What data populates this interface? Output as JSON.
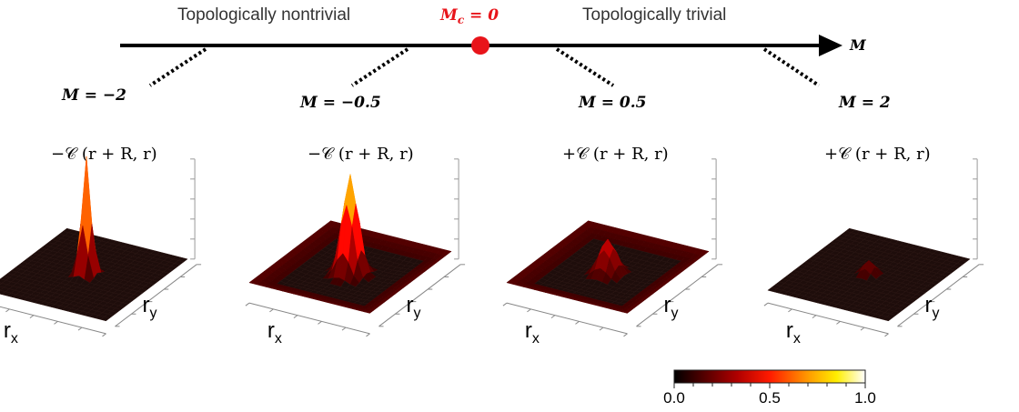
{
  "axis": {
    "variable": "M",
    "region_left": "Topologically nontrivial",
    "region_right": "Topologically trivial",
    "critical": "M_c = 0",
    "critical_color": "#e8141a"
  },
  "panels": [
    {
      "m_label": "M = −2",
      "formula": "−𝒞 (r + R, r)",
      "peak": 1.0,
      "spread": 0.01,
      "edge_curl": 0.0
    },
    {
      "m_label": "M = −0.5",
      "formula": "−𝒞 (r + R, r)",
      "peak": 0.85,
      "spread": 0.025,
      "edge_curl": 0.6
    },
    {
      "m_label": "M = 0.5",
      "formula": "+𝒞 (r + R, r)",
      "peak": 0.3,
      "spread": 0.03,
      "edge_curl": 0.6
    },
    {
      "m_label": "M = 2",
      "formula": "+𝒞 (r + R, r)",
      "peak": 0.12,
      "spread": 0.015,
      "edge_curl": 0.0
    }
  ],
  "axis_labels": {
    "x": "r",
    "x_sub": "x",
    "y": "r",
    "y_sub": "y"
  },
  "colorbar": {
    "min_label": "0.0",
    "mid_label": "0.5",
    "max_label": "1.0",
    "colormap": "hot"
  }
}
